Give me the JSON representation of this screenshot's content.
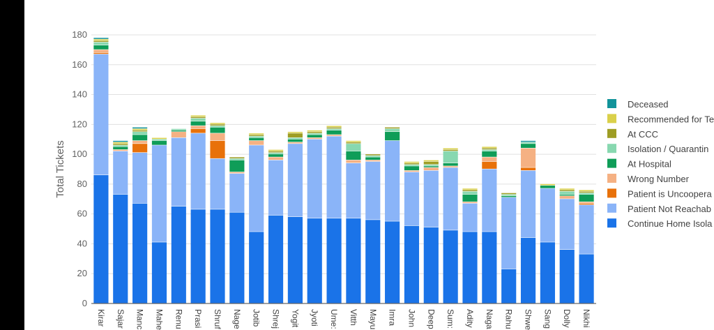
{
  "chart_data": {
    "type": "bar",
    "stacked": true,
    "ylabel": "Total Tickets",
    "ylim": [
      0,
      180
    ],
    "yticks": [
      "0",
      "20",
      "40",
      "60",
      "80",
      "100",
      "120",
      "140",
      "160",
      "180"
    ],
    "grid": true,
    "legend_position": "right",
    "categories": [
      "Kirar",
      "Sajar",
      "Manc",
      "Mahe",
      "Renu",
      "Prasi",
      "Shruf",
      "Nage",
      "Jotib",
      "Shrej",
      "Yogit",
      "Jyoti",
      "Ume:",
      "Vitth",
      "Mayu",
      "Imra",
      "John",
      "Deep",
      "Sum:",
      "Adity",
      "Naga",
      "Rahu",
      "Shwe",
      "Sang",
      "Dolly",
      "Nikhi"
    ],
    "series": [
      {
        "name": "Continue Home Isola",
        "color": "#1a73e8",
        "values": [
          86,
          73,
          67,
          41,
          65,
          63,
          63,
          61,
          48,
          59,
          58,
          57,
          57,
          57,
          56,
          55,
          52,
          51,
          49,
          48,
          48,
          23,
          44,
          41,
          36,
          33
        ]
      },
      {
        "name": "Patient Not Reachab",
        "color": "#8ab4f8",
        "values": [
          81,
          29,
          34,
          65,
          46,
          51,
          34,
          26,
          58,
          37,
          49,
          53,
          55,
          37,
          39,
          54,
          36,
          38,
          42,
          19,
          42,
          48,
          45,
          36,
          34,
          33
        ]
      },
      {
        "name": "Patient is Uncoopera",
        "color": "#e8710a",
        "values": [
          1,
          0,
          6,
          0,
          0,
          3,
          12,
          0,
          0,
          0,
          0,
          0,
          0,
          0,
          0,
          0,
          0,
          0,
          0,
          0,
          5,
          0,
          2,
          0,
          0,
          1
        ]
      },
      {
        "name": "Wrong Number",
        "color": "#f5b183",
        "values": [
          2,
          1,
          2,
          0,
          4,
          2,
          5,
          1,
          3,
          2,
          1,
          1,
          1,
          2,
          1,
          0,
          1,
          2,
          1,
          1,
          3,
          0,
          13,
          0,
          2,
          1
        ]
      },
      {
        "name": "At Hospital",
        "color": "#0f9d58",
        "values": [
          3,
          2,
          4,
          3,
          1,
          3,
          4,
          8,
          2,
          2,
          2,
          2,
          3,
          6,
          2,
          6,
          3,
          1,
          2,
          5,
          4,
          1,
          3,
          2,
          1,
          5
        ]
      },
      {
        "name": "Isolation / Quarantin",
        "color": "#88d8b0",
        "values": [
          2,
          1,
          2,
          1,
          1,
          2,
          1,
          1,
          1,
          1,
          1,
          1,
          1,
          5,
          1,
          2,
          1,
          1,
          8,
          2,
          1,
          1,
          1,
          0,
          2,
          1
        ]
      },
      {
        "name": "At CCC",
        "color": "#9e9d24",
        "values": [
          1,
          1,
          1,
          0,
          0,
          1,
          1,
          1,
          1,
          1,
          3,
          1,
          1,
          1,
          1,
          1,
          1,
          2,
          1,
          1,
          1,
          1,
          0,
          0,
          1,
          1
        ]
      },
      {
        "name": "Recommended for Te",
        "color": "#dad04a",
        "values": [
          1,
          1,
          1,
          1,
          0,
          1,
          1,
          0,
          1,
          1,
          1,
          1,
          1,
          1,
          0,
          0,
          1,
          1,
          1,
          1,
          1,
          0,
          0,
          1,
          1,
          1
        ]
      },
      {
        "name": "Deceased",
        "color": "#12939a",
        "values": [
          1,
          1,
          1,
          0,
          0,
          0,
          0,
          0,
          0,
          0,
          0,
          0,
          0,
          0,
          0,
          0,
          0,
          0,
          0,
          0,
          0,
          0,
          1,
          0,
          0,
          0
        ]
      }
    ]
  }
}
